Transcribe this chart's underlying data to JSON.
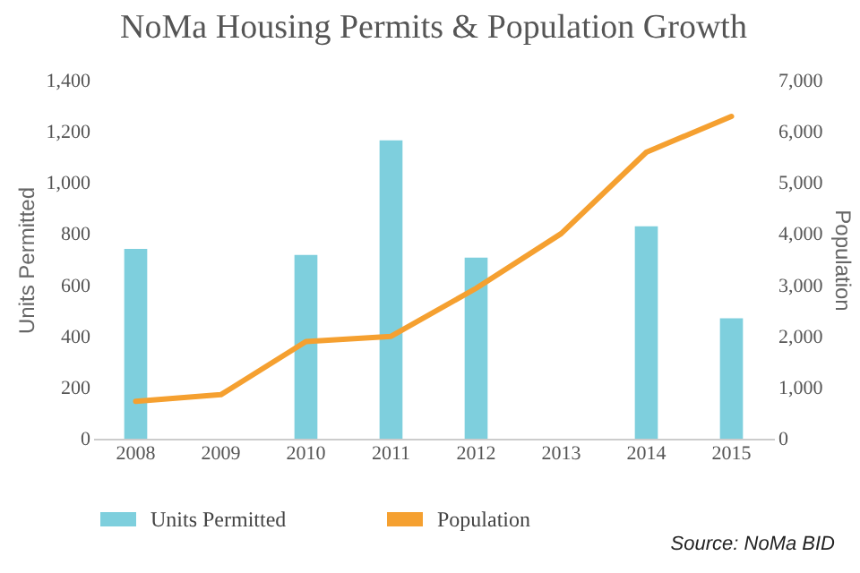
{
  "chart_data": {
    "type": "bar",
    "title": "NoMa Housing Permits & Population Growth",
    "categories": [
      "2008",
      "2009",
      "2010",
      "2011",
      "2012",
      "2013",
      "2014",
      "2015"
    ],
    "series": [
      {
        "name": "Units Permitted",
        "color": "#7ecfdd",
        "values": [
          742,
          0,
          718,
          1166,
          708,
          0,
          830,
          471
        ]
      },
      {
        "name": "Population",
        "type": "line",
        "axis": "y2",
        "color": "#f5a030",
        "values": [
          730,
          860,
          1900,
          2000,
          2940,
          4010,
          5600,
          6300
        ]
      }
    ],
    "ylabel": "Units Permitted",
    "y2label": "Population",
    "ylim": [
      0,
      1400
    ],
    "yticks": [
      0,
      200,
      400,
      600,
      800,
      {
        "value": 1000,
        "label": "1,000"
      },
      {
        "value": 1200,
        "label": "1,200"
      },
      {
        "value": 1400,
        "label": "1,400"
      }
    ],
    "y2lim": [
      0,
      7000
    ],
    "y2ticks": [
      0,
      {
        "value": 1000,
        "label": "1,000"
      },
      {
        "value": 2000,
        "label": "2,000"
      },
      {
        "value": 3000,
        "label": "3,000"
      },
      {
        "value": 4000,
        "label": "4,000"
      },
      {
        "value": 5000,
        "label": "5,000"
      },
      {
        "value": 6000,
        "label": "6,000"
      },
      {
        "value": 7000,
        "label": "7,000"
      }
    ],
    "legend": "bottom",
    "grid": false,
    "annotations": [
      "Source: NoMa BID"
    ]
  }
}
